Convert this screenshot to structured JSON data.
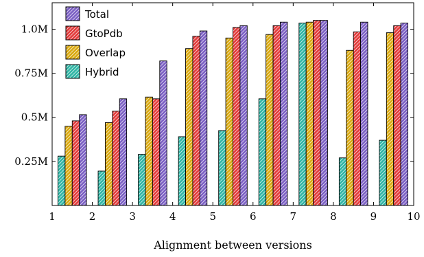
{
  "chart_data": {
    "type": "bar",
    "xlabel": "Alignment between versions",
    "ylabel": "",
    "x_ticks": [
      "1",
      "2",
      "3",
      "4",
      "5",
      "6",
      "7",
      "8",
      "9",
      "10"
    ],
    "y_ticks": [
      {
        "value": 250000,
        "label": "0.25M"
      },
      {
        "value": 500000,
        "label": "0.5M"
      },
      {
        "value": 750000,
        "label": "0.75M"
      },
      {
        "value": 1000000,
        "label": "1.0M"
      }
    ],
    "ylim": [
      0,
      1150000
    ],
    "grid": false,
    "legend_position": "top-left",
    "categories": [
      "1–2",
      "2–3",
      "3–4",
      "4–5",
      "5–6",
      "6–7",
      "7–8",
      "8–9",
      "9–10"
    ],
    "series": [
      {
        "name": "Hybrid",
        "color": "#2fb5a5",
        "values": [
          280000,
          195000,
          290000,
          390000,
          425000,
          605000,
          1035000,
          270000,
          370000
        ]
      },
      {
        "name": "Overlap",
        "color": "#d9a90f",
        "values": [
          450000,
          470000,
          615000,
          890000,
          950000,
          970000,
          1040000,
          880000,
          980000
        ]
      },
      {
        "name": "GtoPdb",
        "color": "#e23a3a",
        "values": [
          480000,
          535000,
          605000,
          960000,
          1010000,
          1020000,
          1050000,
          985000,
          1020000
        ]
      },
      {
        "name": "Total",
        "color": "#7b5fc4",
        "values": [
          515000,
          605000,
          820000,
          990000,
          1020000,
          1040000,
          1050000,
          1040000,
          1035000
        ]
      }
    ],
    "legend_order": [
      "Total",
      "GtoPdb",
      "Overlap",
      "Hybrid"
    ]
  }
}
